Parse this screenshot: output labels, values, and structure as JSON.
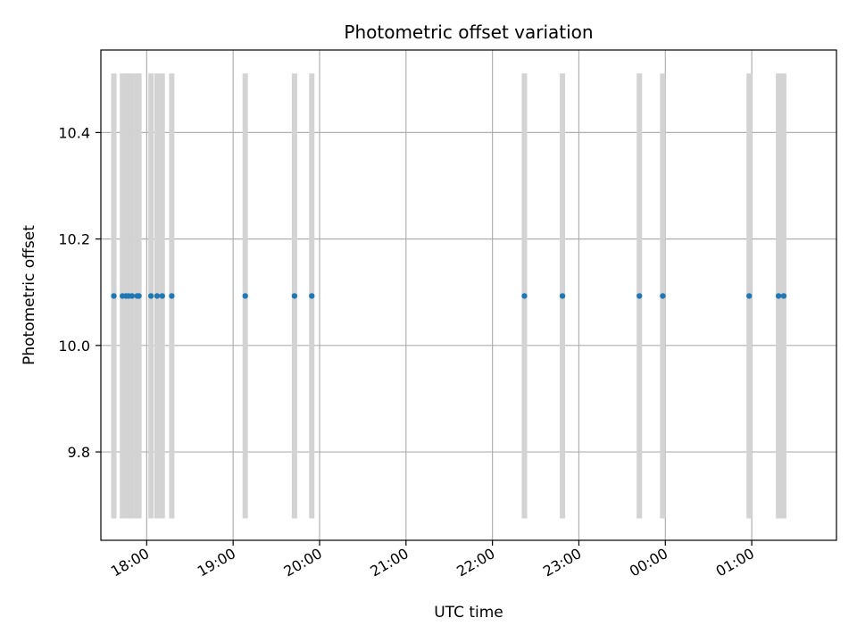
{
  "chart_data": {
    "type": "scatter",
    "title": "Photometric offset variation",
    "xlabel": "UTC time",
    "ylabel": "Photometric offset",
    "grid": true,
    "x_tick_labels": [
      "18:00",
      "19:00",
      "20:00",
      "21:00",
      "22:00",
      "23:00",
      "00:00",
      "01:00"
    ],
    "x_tick_hours": [
      18,
      19,
      20,
      21,
      22,
      23,
      24,
      25
    ],
    "xlim_hours": [
      17.47,
      25.98
    ],
    "y_ticks": [
      9.8,
      10.0,
      10.2,
      10.4
    ],
    "y_tick_labels": [
      "9.8",
      "10.0",
      "10.2",
      "10.4"
    ],
    "ylim": [
      9.634,
      10.555
    ],
    "series": [
      {
        "x_hours": [
          17.62,
          17.72,
          17.76,
          17.79,
          17.83,
          17.89,
          17.91,
          18.05,
          18.12,
          18.18,
          18.29,
          19.14,
          19.71,
          19.91,
          22.37,
          22.81,
          23.7,
          23.97,
          24.97,
          25.31,
          25.37
        ],
        "y": [
          10.093,
          10.093,
          10.093,
          10.093,
          10.093,
          10.093,
          10.093,
          10.093,
          10.093,
          10.093,
          10.093,
          10.093,
          10.093,
          10.093,
          10.093,
          10.093,
          10.093,
          10.093,
          10.093,
          10.093,
          10.093
        ],
        "yerr": [
          0.418,
          0.418,
          0.418,
          0.418,
          0.418,
          0.418,
          0.418,
          0.418,
          0.418,
          0.418,
          0.418,
          0.418,
          0.418,
          0.418,
          0.418,
          0.418,
          0.418,
          0.418,
          0.418,
          0.418,
          0.418
        ]
      }
    ],
    "colors": {
      "points": "#1f77b4",
      "errorbars": "#d3d3d3",
      "grid": "#b0b0b0"
    }
  }
}
